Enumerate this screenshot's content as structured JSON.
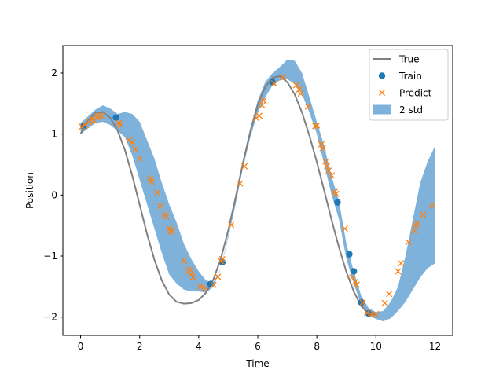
{
  "chart_data": {
    "type": "line",
    "title": "",
    "xlabel": "Time",
    "ylabel": "Position",
    "xlim": [
      -0.6,
      12.6
    ],
    "ylim": [
      -2.3,
      2.45
    ],
    "xticks": [
      0,
      2,
      4,
      6,
      8,
      10,
      12
    ],
    "yticks": [
      -2,
      -1,
      0,
      1,
      2
    ],
    "grid": false,
    "legend_placement": "top-right",
    "colors": {
      "true_line": "#808080",
      "train": "#1f77b4",
      "predict": "#ff7f0e",
      "band": "#7fb2db"
    },
    "series": [
      {
        "name": "True",
        "kind": "line",
        "x": [
          0,
          0.25,
          0.5,
          0.75,
          1,
          1.25,
          1.5,
          1.75,
          2,
          2.25,
          2.5,
          2.75,
          3,
          3.25,
          3.5,
          3.75,
          4,
          4.25,
          4.5,
          4.75,
          5,
          5.25,
          5.5,
          5.75,
          6,
          6.25,
          6.5,
          6.75,
          7,
          7.25,
          7.5,
          7.75,
          8,
          8.25,
          8.5,
          8.75,
          9,
          9.25,
          9.5,
          9.75,
          10
        ],
        "y": [
          1.0,
          1.22,
          1.35,
          1.36,
          1.27,
          1.06,
          0.74,
          0.32,
          -0.16,
          -0.64,
          -1.06,
          -1.4,
          -1.63,
          -1.75,
          -1.78,
          -1.77,
          -1.72,
          -1.6,
          -1.38,
          -1.04,
          -0.58,
          -0.04,
          0.53,
          1.05,
          1.48,
          1.77,
          1.92,
          1.95,
          1.85,
          1.65,
          1.35,
          0.97,
          0.54,
          0.07,
          -0.41,
          -0.86,
          -1.26,
          -1.58,
          -1.82,
          -1.94,
          -1.96
        ]
      },
      {
        "name": "Train",
        "kind": "scatter",
        "x": [
          0.1,
          1.2,
          4.4,
          4.8,
          6.5,
          8.7,
          9.1,
          9.25,
          9.5,
          9.75
        ],
        "y": [
          1.13,
          1.27,
          -1.46,
          -1.1,
          1.85,
          -0.12,
          -0.97,
          -1.25,
          -1.76,
          -1.94
        ]
      },
      {
        "name": "Predict",
        "kind": "scatter",
        "x": [
          0.05,
          0.15,
          0.3,
          0.4,
          0.45,
          0.55,
          0.6,
          0.7,
          1.3,
          1.35,
          1.65,
          1.75,
          1.85,
          2.0,
          2.35,
          2.4,
          2.6,
          2.7,
          2.85,
          2.9,
          3.0,
          3.05,
          3.1,
          3.5,
          3.65,
          3.7,
          3.75,
          3.8,
          4.05,
          4.2,
          4.5,
          4.65,
          4.75,
          4.8,
          5.1,
          5.4,
          5.55,
          5.95,
          6.05,
          6.15,
          6.2,
          6.55,
          6.85,
          7.3,
          7.4,
          7.45,
          7.7,
          7.95,
          8.0,
          8.15,
          8.2,
          8.3,
          8.35,
          8.4,
          8.5,
          8.6,
          8.65,
          8.95,
          9.2,
          9.3,
          9.35,
          9.55,
          9.7,
          9.85,
          10.0,
          10.3,
          10.45,
          10.75,
          10.85,
          11.1,
          11.3,
          11.35,
          11.4,
          11.6,
          11.9
        ],
        "y": [
          1.12,
          1.15,
          1.2,
          1.25,
          1.22,
          1.27,
          1.3,
          1.3,
          1.18,
          1.15,
          0.9,
          0.86,
          0.75,
          0.6,
          0.27,
          0.22,
          0.04,
          -0.18,
          -0.32,
          -0.35,
          -0.55,
          -0.6,
          -0.57,
          -1.08,
          -1.25,
          -1.22,
          -1.3,
          -1.35,
          -1.5,
          -1.53,
          -1.47,
          -1.34,
          -1.08,
          -1.05,
          -0.49,
          0.19,
          0.47,
          1.26,
          1.3,
          1.47,
          1.55,
          1.83,
          1.93,
          1.8,
          1.73,
          1.66,
          1.45,
          1.13,
          1.14,
          0.83,
          0.77,
          0.55,
          0.48,
          0.4,
          0.32,
          0.05,
          0.02,
          -0.55,
          -1.35,
          -1.42,
          -1.47,
          -1.76,
          -1.93,
          -1.96,
          -1.95,
          -1.77,
          -1.62,
          -1.25,
          -1.12,
          -0.77,
          -0.59,
          -0.5,
          -0.47,
          -0.32,
          -0.17
        ]
      },
      {
        "name": "2 std",
        "kind": "band",
        "x": [
          0,
          0.5,
          0.75,
          1.0,
          1.25,
          1.5,
          1.75,
          2.0,
          2.25,
          2.5,
          2.75,
          3.0,
          3.25,
          3.5,
          3.75,
          4.0,
          4.25,
          4.5,
          4.75,
          5.0,
          5.25,
          5.5,
          5.75,
          6.0,
          6.25,
          6.5,
          6.75,
          7.0,
          7.25,
          7.5,
          7.75,
          8.0,
          8.25,
          8.5,
          8.75,
          9.0,
          9.25,
          9.5,
          9.75,
          10.0,
          10.25,
          10.5,
          10.75,
          11.0,
          11.25,
          11.5,
          11.75,
          12.0
        ],
        "upper": [
          1.18,
          1.4,
          1.47,
          1.42,
          1.33,
          1.36,
          1.33,
          1.2,
          0.9,
          0.6,
          0.2,
          -0.15,
          -0.45,
          -0.8,
          -1.05,
          -1.25,
          -1.4,
          -1.43,
          -1.2,
          -0.65,
          -0.05,
          0.55,
          1.1,
          1.55,
          1.85,
          2.0,
          2.1,
          2.22,
          2.2,
          2.0,
          1.6,
          1.2,
          0.8,
          0.3,
          -0.1,
          -0.8,
          -1.25,
          -1.65,
          -1.85,
          -1.92,
          -1.9,
          -1.75,
          -1.5,
          -1.0,
          -0.4,
          0.2,
          0.55,
          0.8
        ],
        "lower": [
          1.0,
          1.18,
          1.2,
          1.15,
          1.05,
          0.95,
          0.65,
          0.25,
          -0.15,
          -0.55,
          -0.95,
          -1.3,
          -1.45,
          -1.55,
          -1.58,
          -1.58,
          -1.6,
          -1.5,
          -1.2,
          -0.7,
          -0.15,
          0.45,
          0.95,
          1.35,
          1.6,
          1.8,
          1.88,
          1.9,
          1.82,
          1.65,
          1.35,
          1.0,
          0.5,
          0.0,
          -0.4,
          -1.05,
          -1.45,
          -1.8,
          -1.97,
          -2.03,
          -2.07,
          -2.02,
          -1.9,
          -1.75,
          -1.55,
          -1.35,
          -1.2,
          -1.12
        ]
      }
    ]
  }
}
